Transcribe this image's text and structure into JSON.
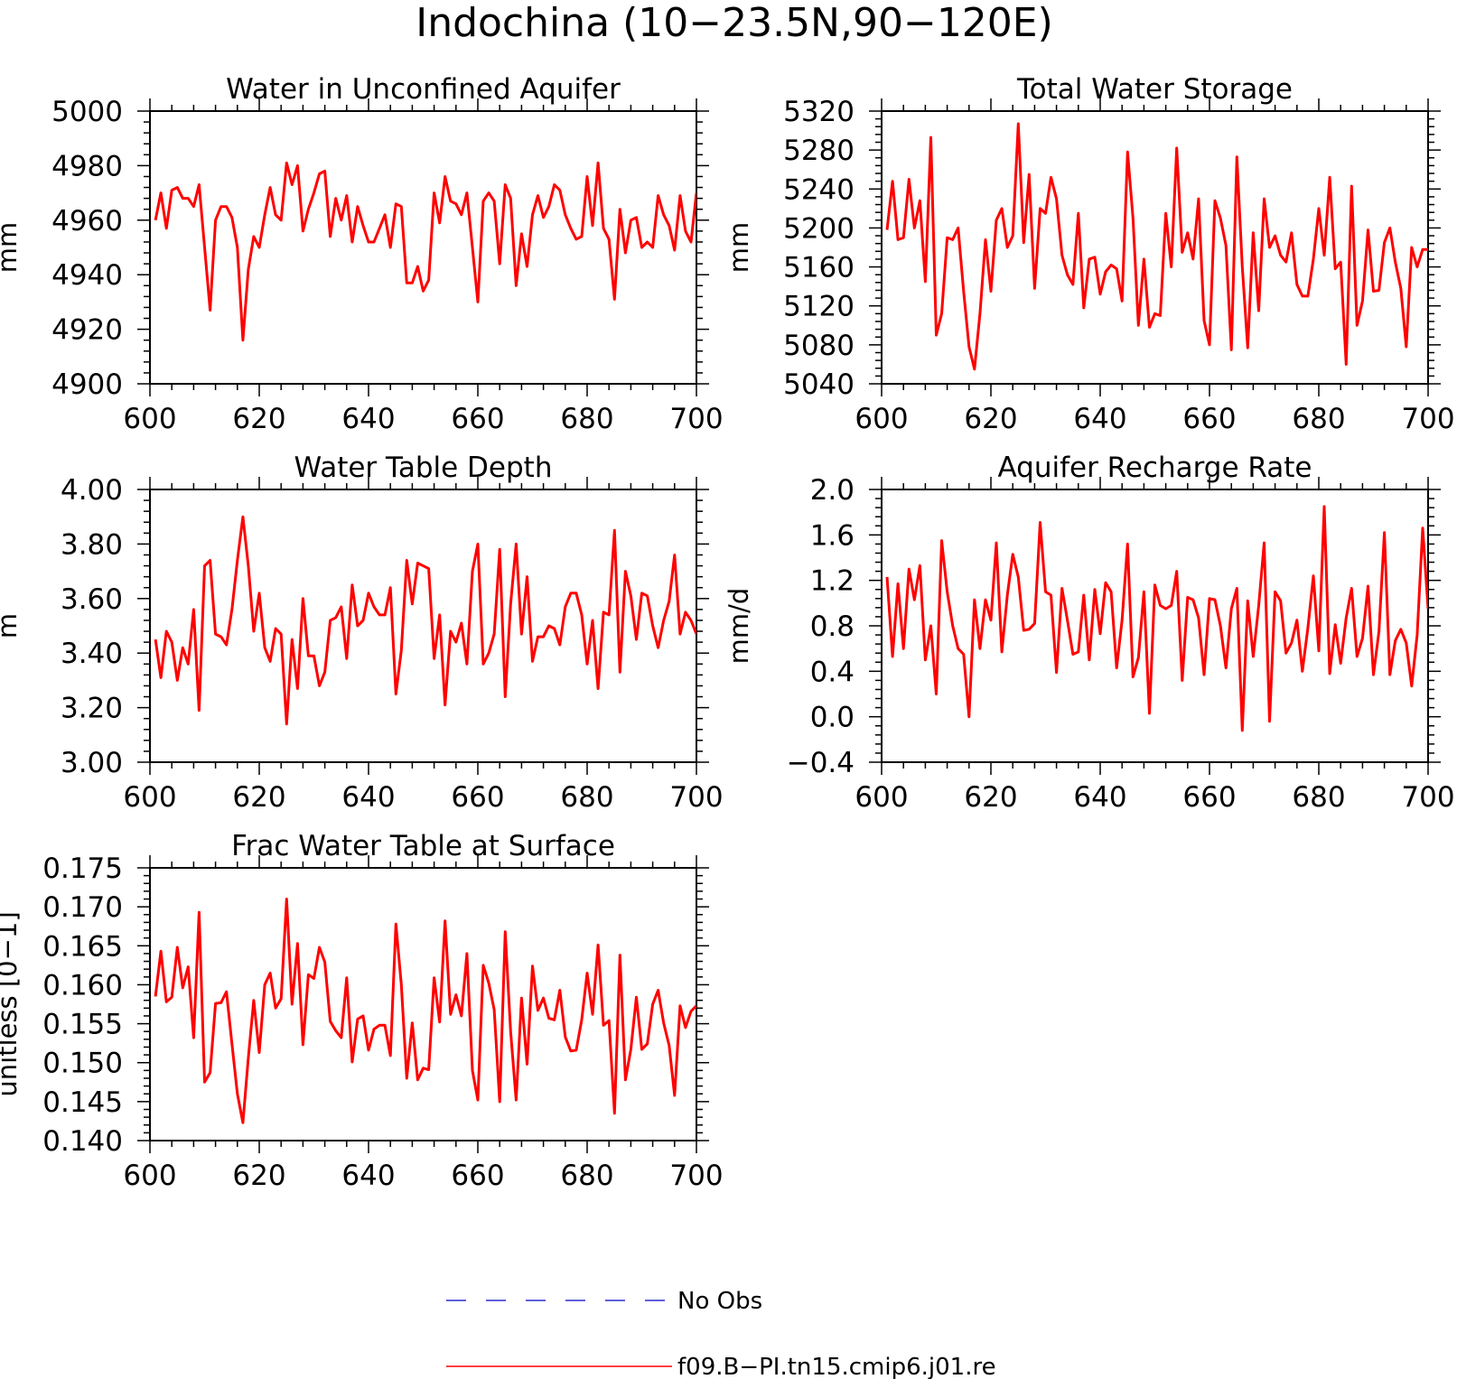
{
  "figure": {
    "title": "Indochina (10−23.5N,90−120E)"
  },
  "legend": {
    "items": [
      {
        "label": "No Obs",
        "color": "#2a2ad0",
        "style": "dashed"
      },
      {
        "label": "f09.B−PI.tn15.cmip6.j01.re",
        "color": "#ff0000",
        "style": "solid"
      }
    ]
  },
  "chart_data": [
    {
      "type": "line",
      "title": "Water in Unconfined Aquifer",
      "xlabel": "",
      "ylabel": "mm",
      "xlim": [
        600,
        700
      ],
      "ylim": [
        4900,
        5000
      ],
      "xticks": [
        600,
        620,
        640,
        660,
        680,
        700
      ],
      "xtick_labels": [
        "600",
        "620",
        "640",
        "660",
        "680",
        "700"
      ],
      "yticks": [
        4900,
        4920,
        4940,
        4960,
        4980,
        5000
      ],
      "ytick_labels": [
        "4900",
        "4920",
        "4940",
        "4960",
        "4980",
        "5000"
      ],
      "x_start": 601,
      "series": [
        {
          "color": "#ff0000",
          "values": [
            4960,
            4970,
            4957,
            4971,
            4972,
            4968,
            4968,
            4965,
            4973,
            4950,
            4927,
            4960,
            4965,
            4965,
            4961,
            4950,
            4916,
            4942,
            4954,
            4950,
            4962,
            4972,
            4962,
            4960,
            4981,
            4973,
            4980,
            4956,
            4964,
            4970,
            4977,
            4978,
            4954,
            4968,
            4960,
            4969,
            4952,
            4965,
            4958,
            4952,
            4952,
            4957,
            4962,
            4950,
            4966,
            4965,
            4937,
            4937,
            4943,
            4934,
            4938,
            4970,
            4959,
            4976,
            4967,
            4966,
            4962,
            4970,
            4950,
            4930,
            4967,
            4970,
            4967,
            4944,
            4973,
            4968,
            4936,
            4955,
            4943,
            4962,
            4969,
            4961,
            4965,
            4973,
            4971,
            4962,
            4957,
            4953,
            4954,
            4976,
            4958,
            4981,
            4957,
            4953,
            4931,
            4964,
            4948,
            4960,
            4961,
            4950,
            4952,
            4950,
            4969,
            4962,
            4958,
            4949,
            4969,
            4956,
            4952,
            4970
          ]
        }
      ]
    },
    {
      "type": "line",
      "title": "Total Water Storage",
      "xlabel": "",
      "ylabel": "mm",
      "xlim": [
        600,
        700
      ],
      "ylim": [
        5040,
        5320
      ],
      "xticks": [
        600,
        620,
        640,
        660,
        680,
        700
      ],
      "xtick_labels": [
        "600",
        "620",
        "640",
        "660",
        "680",
        "700"
      ],
      "yticks": [
        5040,
        5080,
        5120,
        5160,
        5200,
        5240,
        5280,
        5320
      ],
      "ytick_labels": [
        "5040",
        "5080",
        "5120",
        "5160",
        "5200",
        "5240",
        "5280",
        "5320"
      ],
      "x_start": 601,
      "series": [
        {
          "color": "#ff0000",
          "values": [
            5198,
            5248,
            5188,
            5190,
            5250,
            5200,
            5228,
            5145,
            5293,
            5090,
            5112,
            5190,
            5188,
            5200,
            5135,
            5078,
            5055,
            5112,
            5188,
            5135,
            5208,
            5220,
            5180,
            5192,
            5307,
            5185,
            5255,
            5138,
            5220,
            5215,
            5252,
            5230,
            5172,
            5152,
            5142,
            5215,
            5118,
            5168,
            5170,
            5132,
            5155,
            5162,
            5158,
            5125,
            5278,
            5210,
            5100,
            5168,
            5098,
            5112,
            5110,
            5215,
            5160,
            5282,
            5175,
            5195,
            5168,
            5230,
            5105,
            5080,
            5228,
            5210,
            5182,
            5075,
            5273,
            5160,
            5077,
            5195,
            5115,
            5230,
            5180,
            5192,
            5172,
            5165,
            5195,
            5142,
            5130,
            5130,
            5168,
            5220,
            5172,
            5252,
            5158,
            5165,
            5060,
            5243,
            5100,
            5125,
            5198,
            5135,
            5136,
            5185,
            5200,
            5165,
            5138,
            5078,
            5180,
            5160,
            5178,
            5178
          ]
        }
      ]
    },
    {
      "type": "line",
      "title": "Water Table Depth",
      "xlabel": "",
      "ylabel": "m",
      "xlim": [
        600,
        700
      ],
      "ylim": [
        3.0,
        4.0
      ],
      "xticks": [
        600,
        620,
        640,
        660,
        680,
        700
      ],
      "xtick_labels": [
        "600",
        "620",
        "640",
        "660",
        "680",
        "700"
      ],
      "yticks": [
        3.0,
        3.2,
        3.4,
        3.6,
        3.8,
        4.0
      ],
      "ytick_labels": [
        "3.00",
        "3.20",
        "3.40",
        "3.60",
        "3.80",
        "4.00"
      ],
      "x_start": 601,
      "series": [
        {
          "color": "#ff0000",
          "values": [
            3.45,
            3.31,
            3.48,
            3.44,
            3.3,
            3.42,
            3.36,
            3.56,
            3.19,
            3.72,
            3.74,
            3.47,
            3.46,
            3.43,
            3.56,
            3.74,
            3.9,
            3.72,
            3.48,
            3.62,
            3.42,
            3.37,
            3.49,
            3.47,
            3.14,
            3.45,
            3.27,
            3.6,
            3.39,
            3.39,
            3.28,
            3.33,
            3.52,
            3.53,
            3.57,
            3.38,
            3.65,
            3.5,
            3.52,
            3.62,
            3.57,
            3.54,
            3.54,
            3.64,
            3.25,
            3.41,
            3.74,
            3.58,
            3.73,
            3.72,
            3.71,
            3.38,
            3.54,
            3.21,
            3.48,
            3.44,
            3.51,
            3.36,
            3.7,
            3.8,
            3.36,
            3.4,
            3.47,
            3.78,
            3.24,
            3.58,
            3.8,
            3.47,
            3.68,
            3.37,
            3.46,
            3.46,
            3.5,
            3.49,
            3.43,
            3.57,
            3.62,
            3.62,
            3.54,
            3.36,
            3.52,
            3.27,
            3.55,
            3.54,
            3.85,
            3.33,
            3.7,
            3.61,
            3.45,
            3.62,
            3.61,
            3.5,
            3.42,
            3.52,
            3.59,
            3.76,
            3.47,
            3.55,
            3.52,
            3.47
          ]
        }
      ]
    },
    {
      "type": "line",
      "title": "Aquifer Recharge Rate",
      "xlabel": "",
      "ylabel": "mm/d",
      "xlim": [
        600,
        700
      ],
      "ylim": [
        -0.4,
        2.0
      ],
      "xticks": [
        600,
        620,
        640,
        660,
        680,
        700
      ],
      "xtick_labels": [
        "600",
        "620",
        "640",
        "660",
        "680",
        "700"
      ],
      "yticks": [
        -0.4,
        0.0,
        0.4,
        0.8,
        1.2,
        1.6,
        2.0
      ],
      "ytick_labels": [
        "−0.4",
        "0.0",
        "0.4",
        "0.8",
        "1.2",
        "1.6",
        "2.0"
      ],
      "x_start": 601,
      "series": [
        {
          "color": "#ff0000",
          "values": [
            1.23,
            0.53,
            1.17,
            0.6,
            1.3,
            1.03,
            1.33,
            0.5,
            0.8,
            0.2,
            1.55,
            1.1,
            0.8,
            0.6,
            0.55,
            0.0,
            1.03,
            0.6,
            1.03,
            0.85,
            1.53,
            0.57,
            1.07,
            1.43,
            1.23,
            0.76,
            0.77,
            0.82,
            1.71,
            1.1,
            1.07,
            0.39,
            1.13,
            0.85,
            0.55,
            0.57,
            1.07,
            0.5,
            1.12,
            0.73,
            1.18,
            1.1,
            0.43,
            0.85,
            1.52,
            0.35,
            0.52,
            1.1,
            0.03,
            1.16,
            0.98,
            0.95,
            0.98,
            1.28,
            0.32,
            1.05,
            1.03,
            0.87,
            0.37,
            1.04,
            1.03,
            0.8,
            0.43,
            0.95,
            1.13,
            -0.12,
            1.02,
            0.53,
            0.98,
            1.53,
            -0.04,
            1.1,
            1.02,
            0.56,
            0.65,
            0.85,
            0.4,
            0.78,
            1.24,
            0.58,
            1.85,
            0.38,
            0.81,
            0.47,
            0.87,
            1.13,
            0.53,
            0.69,
            1.15,
            0.37,
            0.75,
            1.62,
            0.37,
            0.67,
            0.77,
            0.65,
            0.27,
            0.72,
            1.66,
            0.95
          ]
        }
      ]
    },
    {
      "type": "line",
      "title": "Frac Water Table at Surface",
      "xlabel": "",
      "ylabel": "unitless [0−1]",
      "xlim": [
        600,
        700
      ],
      "ylim": [
        0.14,
        0.175
      ],
      "xticks": [
        600,
        620,
        640,
        660,
        680,
        700
      ],
      "xtick_labels": [
        "600",
        "620",
        "640",
        "660",
        "680",
        "700"
      ],
      "yticks": [
        0.14,
        0.145,
        0.15,
        0.155,
        0.16,
        0.165,
        0.17,
        0.175
      ],
      "ytick_labels": [
        "0.140",
        "0.145",
        "0.150",
        "0.155",
        "0.160",
        "0.165",
        "0.170",
        "0.175"
      ],
      "x_start": 601,
      "series": [
        {
          "color": "#ff0000",
          "values": [
            0.1585,
            0.1643,
            0.1578,
            0.1584,
            0.1648,
            0.1596,
            0.1623,
            0.1532,
            0.1693,
            0.1475,
            0.1487,
            0.1576,
            0.1577,
            0.1591,
            0.1524,
            0.146,
            0.1423,
            0.1506,
            0.158,
            0.1513,
            0.16,
            0.1615,
            0.157,
            0.1582,
            0.171,
            0.1575,
            0.1653,
            0.1523,
            0.1613,
            0.1608,
            0.1648,
            0.1629,
            0.1553,
            0.1541,
            0.1532,
            0.1609,
            0.1501,
            0.1556,
            0.156,
            0.1516,
            0.1543,
            0.1548,
            0.1548,
            0.1509,
            0.1678,
            0.16,
            0.148,
            0.1551,
            0.1478,
            0.1493,
            0.1491,
            0.1609,
            0.1552,
            0.1682,
            0.1562,
            0.1587,
            0.156,
            0.164,
            0.149,
            0.1452,
            0.1625,
            0.1602,
            0.1568,
            0.145,
            0.1668,
            0.154,
            0.1452,
            0.1583,
            0.1498,
            0.1624,
            0.1567,
            0.1583,
            0.1557,
            0.1555,
            0.1593,
            0.1533,
            0.1515,
            0.1516,
            0.1555,
            0.1615,
            0.1562,
            0.1651,
            0.1548,
            0.1554,
            0.1435,
            0.1638,
            0.1478,
            0.1517,
            0.1584,
            0.1517,
            0.1524,
            0.1575,
            0.1593,
            0.1551,
            0.1522,
            0.1458,
            0.1573,
            0.1545,
            0.1566,
            0.1573
          ]
        }
      ]
    }
  ]
}
